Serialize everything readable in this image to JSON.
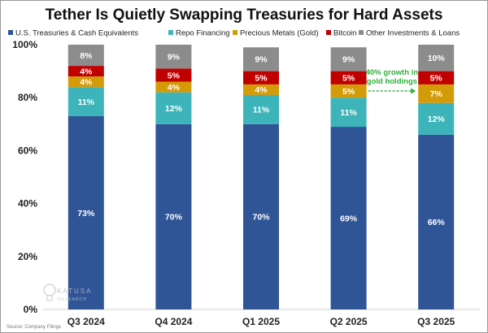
{
  "chart_data": {
    "type": "stacked-bar",
    "title": "Tether Is Quietly Swapping Treasuries for Hard Assets",
    "categories": [
      "Q3 2024",
      "Q4 2024",
      "Q1 2025",
      "Q2 2025",
      "Q3 2025"
    ],
    "ylim": [
      0,
      100
    ],
    "yticks": [
      0,
      20,
      40,
      60,
      80,
      100
    ],
    "ytick_labels": [
      "0%",
      "20%",
      "40%",
      "60%",
      "80%",
      "100%"
    ],
    "legend_position": "top",
    "series": [
      {
        "name": "U.S. Treasuries & Cash Equivalents",
        "color": "#2f5597",
        "values": [
          73,
          70,
          70,
          69,
          66
        ],
        "labels": [
          "73%",
          "70%",
          "70%",
          "69%",
          "66%"
        ]
      },
      {
        "name": "Repo Financing",
        "color": "#3cb4ba",
        "values": [
          11,
          12,
          11,
          11,
          12
        ],
        "labels": [
          "11%",
          "12%",
          "11%",
          "11%",
          "12%"
        ]
      },
      {
        "name": "Precious Metals (Gold)",
        "color": "#d49b08",
        "values": [
          4,
          4,
          4,
          5,
          7
        ],
        "labels": [
          "4%",
          "4%",
          "4%",
          "5%",
          "7%"
        ]
      },
      {
        "name": "Bitcoin",
        "color": "#c00000",
        "values": [
          4,
          5,
          5,
          5,
          5
        ],
        "labels": [
          "4%",
          "5%",
          "5%",
          "5%",
          "5%"
        ]
      },
      {
        "name": "Other Investments & Loans",
        "color": "#8c8c8c",
        "values": [
          8,
          9,
          9,
          9,
          10
        ],
        "labels": [
          "8%",
          "9%",
          "9%",
          "9%",
          "10%"
        ]
      }
    ],
    "annotation": {
      "text_line1": "40% growth in",
      "text_line2": "gold holdings",
      "from_category": "Q2 2025",
      "to_category": "Q3 2025",
      "at_value": 82.5,
      "color": "#2eb03a"
    }
  },
  "logo": {
    "name": "KATUSA",
    "sub": "RESEARCH"
  },
  "source": "Source: Company Filings"
}
